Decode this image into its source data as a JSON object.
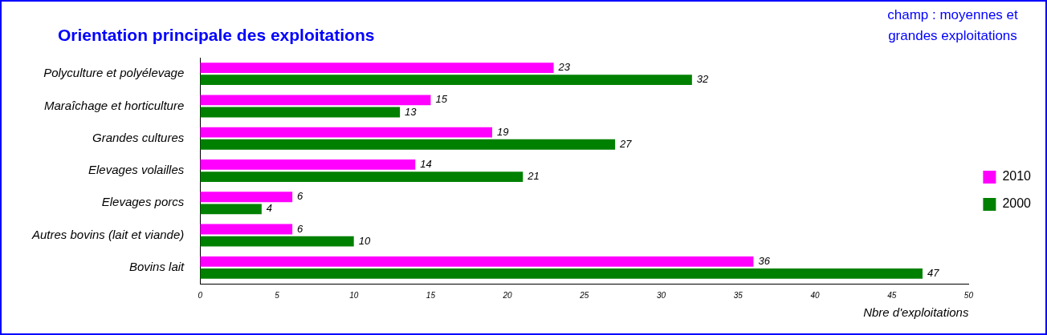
{
  "chart_data": {
    "type": "bar",
    "orientation": "horizontal",
    "title": "Orientation principale des exploitations",
    "annotations": [
      "champ : moyennes et grandes exploitations"
    ],
    "xlabel": "Nbre d'exploitations",
    "categories": [
      "Polyculture et polyélevage",
      "Maraîchage et horticulture",
      "Grandes cultures",
      "Elevages volailles",
      "Elevages porcs",
      "Autres bovins (lait et viande)",
      "Bovins lait"
    ],
    "series": [
      {
        "name": "2010",
        "color": "#ff00ff",
        "values": [
          23,
          15,
          19,
          14,
          6,
          6,
          36
        ]
      },
      {
        "name": "2000",
        "color": "#008000",
        "values": [
          32,
          13,
          27,
          21,
          4,
          10,
          47
        ]
      }
    ],
    "xlim": [
      0,
      50
    ],
    "xticks": [
      0,
      5,
      10,
      15,
      20,
      25,
      30,
      35,
      40,
      45,
      50
    ],
    "grid": false,
    "legend": "right",
    "data_labels": true
  }
}
